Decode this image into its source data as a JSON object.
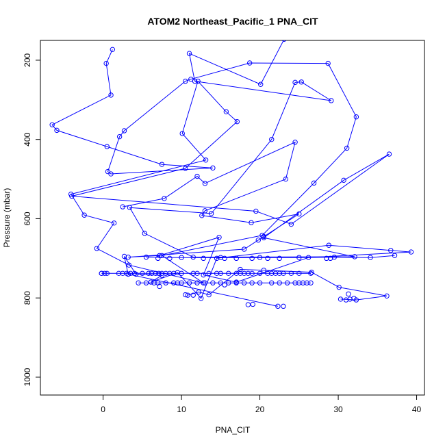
{
  "chart_data": {
    "type": "line",
    "title": "ATOM2 Northeast_Pacific_1 PNA_CIT",
    "xlabel": "PNA_CIT",
    "ylabel": "Pressure (mbar)",
    "xlim": [
      -8,
      41
    ],
    "ylim": [
      1045,
      150
    ],
    "y_reversed": true,
    "x_ticks": [
      0,
      10,
      20,
      30,
      40
    ],
    "y_ticks": [
      200,
      400,
      600,
      800,
      1000
    ],
    "grid": false,
    "legend": "none",
    "line_color": "#0000ff",
    "marker": "open-circle",
    "series": [
      {
        "points": [
          [
            1.2,
            173
          ],
          [
            0.4,
            208
          ],
          [
            1.0,
            288
          ],
          [
            -6.5,
            363
          ],
          [
            -5.9,
            377
          ],
          [
            0.5,
            418
          ],
          [
            7.5,
            463
          ],
          [
            14.0,
            472
          ],
          [
            1.0,
            487
          ],
          [
            0.6,
            481
          ],
          [
            2.1,
            393
          ],
          [
            2.7,
            378
          ],
          [
            10.5,
            253
          ],
          [
            11.2,
            248
          ],
          [
            18.7,
            207
          ],
          [
            28.7,
            208
          ],
          [
            32.3,
            343
          ],
          [
            31.1,
            422
          ],
          [
            26.9,
            510
          ],
          [
            20.3,
            642
          ],
          [
            7.5,
            693
          ],
          [
            12.8,
            762
          ],
          [
            3.3,
            717
          ],
          [
            -0.8,
            675
          ],
          [
            1.4,
            611
          ],
          [
            -2.4,
            591
          ],
          [
            -4.1,
            538
          ],
          [
            13.1,
            452
          ],
          [
            10.1,
            385
          ],
          [
            12.1,
            253
          ],
          [
            15.7,
            330
          ],
          [
            17.1,
            355
          ],
          [
            10.5,
            473
          ],
          [
            -4.0,
            543
          ],
          [
            19.5,
            581
          ],
          [
            24.0,
            614
          ],
          [
            36.5,
            437
          ],
          [
            30.7,
            503
          ],
          [
            20.5,
            648
          ],
          [
            32.1,
            696
          ],
          [
            11.5,
            697
          ],
          [
            5.3,
            637
          ],
          [
            3.4,
            572
          ],
          [
            13.8,
            587
          ],
          [
            21.5,
            400
          ],
          [
            24.5,
            256
          ],
          [
            25.3,
            255
          ],
          [
            29.1,
            302
          ],
          [
            11.7,
            253
          ],
          [
            11.0,
            183
          ],
          [
            20.1,
            261
          ],
          [
            23.1,
            147
          ]
        ]
      },
      {
        "points": [
          [
            2.5,
            570
          ],
          [
            7.8,
            549
          ],
          [
            12.0,
            493
          ],
          [
            13.0,
            511
          ],
          [
            24.5,
            407
          ],
          [
            23.3,
            500
          ],
          [
            13.0,
            580
          ],
          [
            12.6,
            592
          ],
          [
            18.9,
            610
          ],
          [
            25.0,
            588
          ],
          [
            19.8,
            654
          ],
          [
            18.0,
            677
          ],
          [
            3.2,
            697
          ],
          [
            7.2,
            693
          ],
          [
            14.8,
            647
          ],
          [
            12.8,
            742
          ],
          [
            17.0,
            760
          ],
          [
            26.2,
            698
          ],
          [
            39.3,
            684
          ],
          [
            36.7,
            680
          ],
          [
            28.8,
            667
          ],
          [
            14.5,
            700
          ],
          [
            12.5,
            801
          ],
          [
            9.5,
            736
          ],
          [
            6.1,
            760
          ],
          [
            7.5,
            743
          ],
          [
            4.2,
            740
          ],
          [
            2.7,
            695
          ],
          [
            3.2,
            740
          ],
          [
            22.3,
            821
          ]
        ]
      },
      {
        "points": [
          [
            -0.2,
            738
          ],
          [
            5.0,
            738
          ],
          [
            10.0,
            738
          ],
          [
            15.0,
            738
          ],
          [
            20.0,
            738
          ],
          [
            25.0,
            738
          ],
          [
            26.5,
            738
          ]
        ]
      },
      {
        "points": [
          [
            4.5,
            762
          ],
          [
            10.0,
            762
          ],
          [
            15.0,
            762
          ],
          [
            20.0,
            762
          ],
          [
            25.0,
            762
          ],
          [
            26.5,
            762
          ]
        ]
      },
      {
        "points": [
          [
            10.8,
            793
          ],
          [
            12.2,
            785
          ],
          [
            13.5,
            792
          ],
          [
            17.5,
            728
          ],
          [
            20.5,
            730
          ],
          [
            26.6,
            735
          ],
          [
            30.1,
            773
          ],
          [
            36.2,
            795
          ],
          [
            32.3,
            805
          ],
          [
            30.3,
            803
          ]
        ]
      },
      {
        "points": [
          [
            5.5,
            697
          ],
          [
            10.0,
            698
          ],
          [
            15.0,
            698
          ],
          [
            20.0,
            698
          ],
          [
            25.0,
            698
          ],
          [
            29.5,
            697
          ],
          [
            34.1,
            698
          ],
          [
            37.2,
            693
          ]
        ]
      }
    ],
    "markers_only": [
      [
        -0.2,
        738
      ],
      [
        0.2,
        738
      ],
      [
        0.5,
        738
      ],
      [
        2.0,
        738
      ],
      [
        2.5,
        738
      ],
      [
        3.0,
        738
      ],
      [
        3.5,
        738
      ],
      [
        4.0,
        738
      ],
      [
        5.8,
        738
      ],
      [
        6.2,
        738
      ],
      [
        6.7,
        738
      ],
      [
        7.1,
        738
      ],
      [
        7.5,
        738
      ],
      [
        8.0,
        738
      ],
      [
        8.5,
        738
      ],
      [
        9.0,
        738
      ],
      [
        11.5,
        738
      ],
      [
        12.0,
        738
      ],
      [
        13.5,
        738
      ],
      [
        14.5,
        738
      ],
      [
        16.0,
        738
      ],
      [
        17.0,
        738
      ],
      [
        17.5,
        738
      ],
      [
        18.0,
        738
      ],
      [
        18.5,
        738
      ],
      [
        19.0,
        738
      ],
      [
        21.0,
        738
      ],
      [
        21.5,
        738
      ],
      [
        22.0,
        738
      ],
      [
        22.5,
        738
      ],
      [
        23.0,
        738
      ],
      [
        24.0,
        738
      ],
      [
        5.5,
        762
      ],
      [
        6.5,
        762
      ],
      [
        7.0,
        762
      ],
      [
        8.0,
        762
      ],
      [
        9.0,
        762
      ],
      [
        9.5,
        762
      ],
      [
        11.0,
        762
      ],
      [
        12.0,
        762
      ],
      [
        13.0,
        762
      ],
      [
        14.0,
        762
      ],
      [
        16.0,
        762
      ],
      [
        17.0,
        762
      ],
      [
        18.0,
        762
      ],
      [
        19.0,
        762
      ],
      [
        21.5,
        762
      ],
      [
        22.5,
        762
      ],
      [
        23.5,
        762
      ],
      [
        24.5,
        762
      ],
      [
        25.5,
        762
      ],
      [
        26.0,
        762
      ],
      [
        7.2,
        771
      ],
      [
        10.5,
        792
      ],
      [
        11.5,
        793
      ],
      [
        15.5,
        767
      ],
      [
        18.5,
        817
      ],
      [
        19.1,
        816
      ],
      [
        20.5,
        645
      ],
      [
        23.0,
        821
      ],
      [
        12.8,
        700
      ],
      [
        15.5,
        700
      ],
      [
        17.0,
        700
      ],
      [
        19.0,
        700
      ],
      [
        21.0,
        700
      ],
      [
        22.5,
        700
      ],
      [
        28.5,
        700
      ],
      [
        29.0,
        700
      ],
      [
        8.5,
        700
      ],
      [
        7.0,
        700
      ],
      [
        31.0,
        805
      ],
      [
        31.5,
        803
      ],
      [
        32.0,
        801
      ],
      [
        31.3,
        790
      ]
    ]
  }
}
